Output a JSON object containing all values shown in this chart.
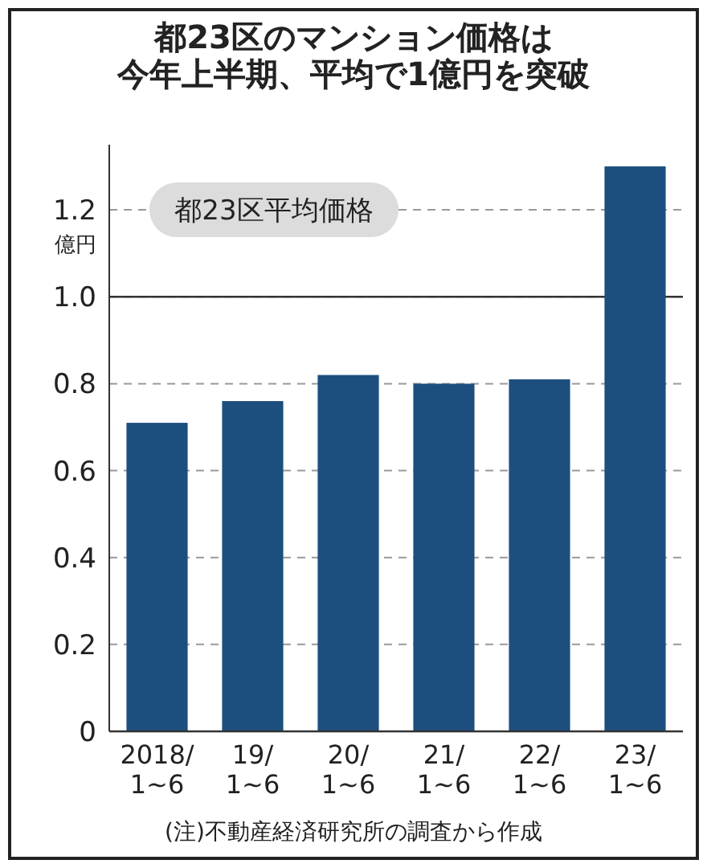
{
  "chart_data": {
    "type": "bar",
    "title": "都23区のマンション価格は今年上半期、平均で1億円を突破",
    "ylabel": "億円",
    "categories": [
      "2018/\n1~6",
      "19/\n1~6",
      "20/\n1~6",
      "21/\n1~6",
      "22/\n1~6",
      "23/\n1~6"
    ],
    "series": [
      {
        "name": "都23区平均価格",
        "color": "#1d4f7e",
        "values": [
          0.71,
          0.76,
          0.82,
          0.8,
          0.81,
          1.3
        ]
      }
    ],
    "ylim": [
      0,
      1.35
    ],
    "yticks": [
      0,
      0.2,
      0.4,
      0.6,
      0.8,
      {
        "value": 1,
        "label": "1.0"
      },
      1.2
    ],
    "ref_lines": [
      {
        "axis": "y",
        "value": 1,
        "line_style": "solid"
      }
    ],
    "grid": "y",
    "legend": "top left",
    "annotations": [
      "(注)不動産経済研究所の調査から作成"
    ]
  }
}
